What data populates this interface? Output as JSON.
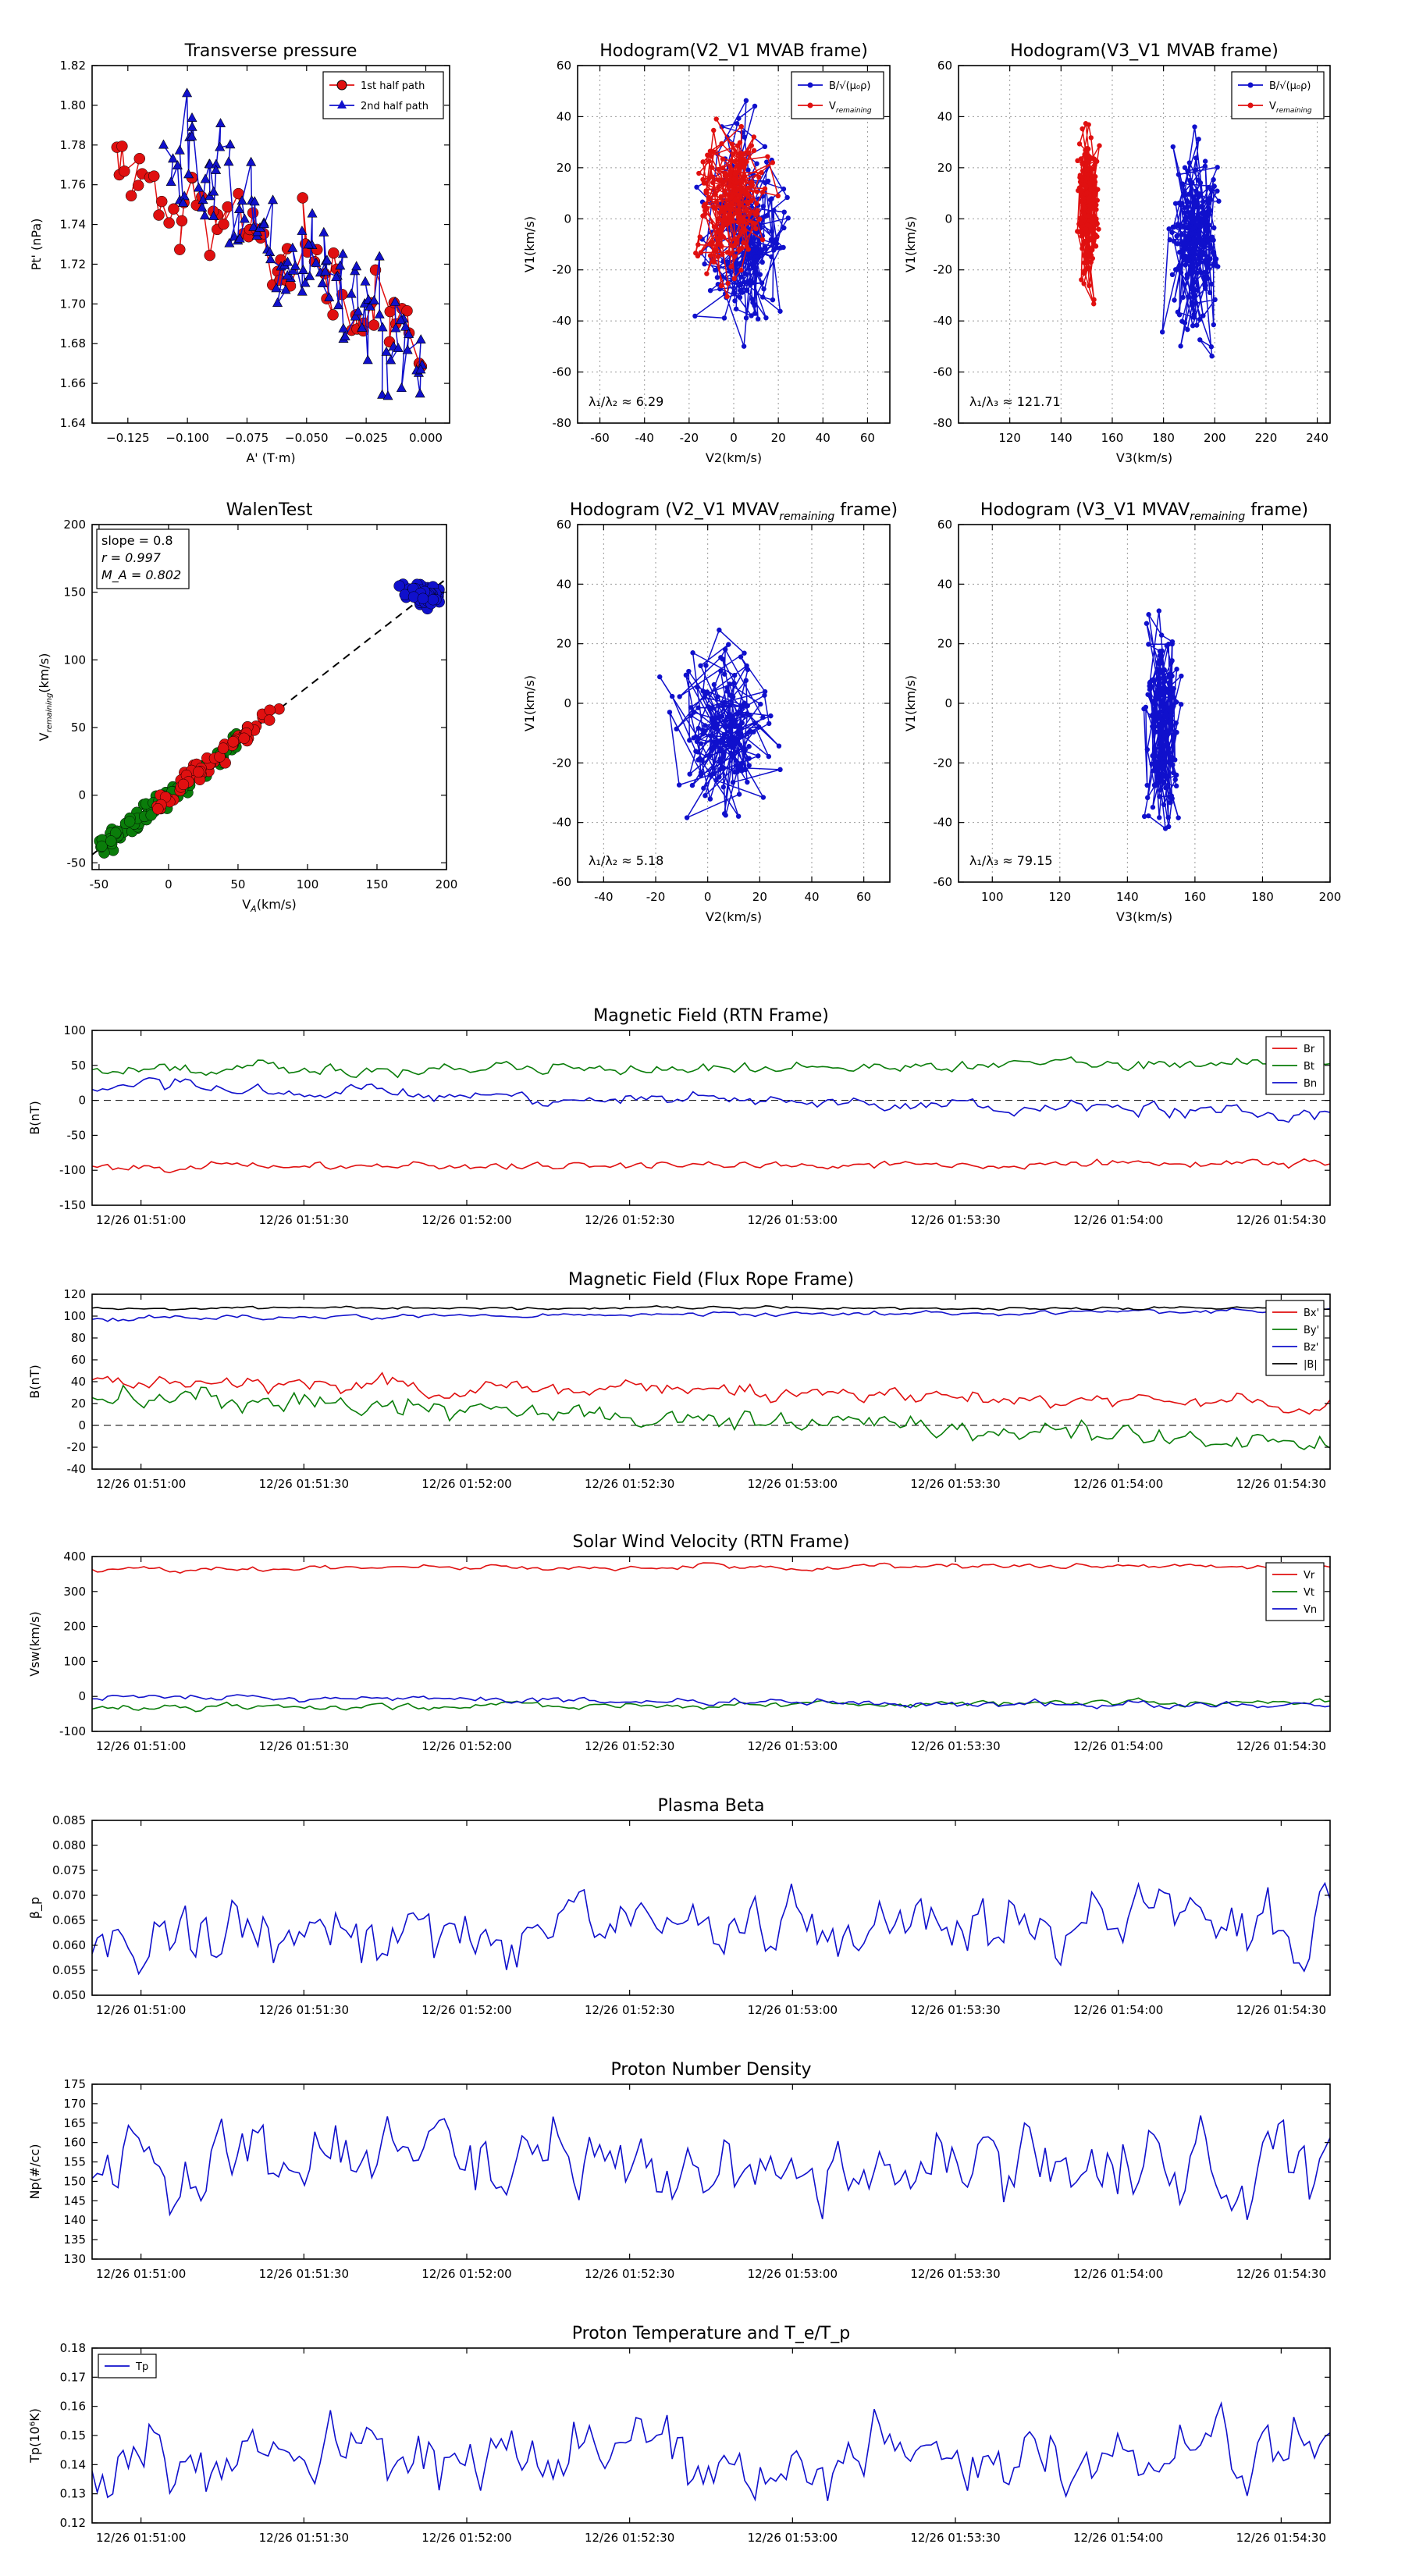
{
  "colors": {
    "red": "#e01010",
    "green": "#0a7d0a",
    "blue": "#1010cc",
    "black": "#000000"
  },
  "chart_data": [
    {
      "id": "p1",
      "type": "line",
      "markers": true,
      "title": "Transverse pressure",
      "xlabel": "A' (T·m)",
      "ylabel": "Pt' (nPa)",
      "xlim": [
        -0.14,
        0.01
      ],
      "ylim": [
        1.64,
        1.82
      ],
      "xticks": [
        -0.125,
        -0.1,
        -0.075,
        -0.05,
        -0.025,
        0.0
      ],
      "xtick_labels": [
        "−0.125",
        "−0.100",
        "−0.075",
        "−0.050",
        "−0.025",
        "0.000"
      ],
      "yticks": [
        1.64,
        1.66,
        1.68,
        1.7,
        1.72,
        1.74,
        1.76,
        1.78,
        1.8,
        1.82
      ],
      "ytick_labels": [
        "1.64",
        "1.66",
        "1.68",
        "1.70",
        "1.72",
        "1.74",
        "1.76",
        "1.78",
        "1.80",
        "1.82"
      ],
      "grid": false,
      "legend": "top-right",
      "series": [
        {
          "name": "1st half path",
          "color": "red",
          "marker": "circle",
          "gen": {
            "kind": "ramp",
            "n": 70,
            "x0": -0.131,
            "x1": -0.002,
            "y0": 1.775,
            "y1": 1.68,
            "amp": 0.03,
            "seed": 3
          }
        },
        {
          "name": "2nd half path",
          "color": "blue",
          "marker": "triangle",
          "gen": {
            "kind": "ramp",
            "n": 120,
            "x0": -0.108,
            "x1": -0.001,
            "y0": 1.785,
            "y1": 1.665,
            "amp": 0.035,
            "seed": 9
          }
        }
      ]
    },
    {
      "id": "p2",
      "type": "scatter-line",
      "markers": true,
      "title": "Hodogram(V2_V1 MVAB frame)",
      "xlabel": "V2(km/s)",
      "ylabel": "V1(km/s)",
      "xlim": [
        -70,
        70
      ],
      "ylim": [
        -80,
        60
      ],
      "xticks": [
        -60,
        -40,
        -20,
        0,
        20,
        40,
        60
      ],
      "yticks": [
        -80,
        -60,
        -40,
        -20,
        0,
        20,
        40,
        60
      ],
      "grid": true,
      "legend": "top-right",
      "annotation": "λ₁/λ₂ ≈ 6.29",
      "series": [
        {
          "name": "B/√(μ₀ρ)",
          "color": "blue",
          "marker": "circle",
          "gen": {
            "kind": "walk",
            "n": 200,
            "cx": 5,
            "cy": -5,
            "sx": 16,
            "sy": 30,
            "seed": 21
          }
        },
        {
          "name": "V_remaining",
          "color": "red",
          "marker": "circle",
          "gen": {
            "kind": "walk",
            "n": 200,
            "cx": 0,
            "cy": 5,
            "sx": 13,
            "sy": 24,
            "seed": 33
          }
        }
      ]
    },
    {
      "id": "p3",
      "type": "scatter-line",
      "markers": true,
      "title": "Hodogram(V3_V1 MVAB frame)",
      "xlabel": "V3(km/s)",
      "ylabel": "V1(km/s)",
      "xlim": [
        100,
        245
      ],
      "ylim": [
        -80,
        60
      ],
      "xticks": [
        120,
        140,
        160,
        180,
        200,
        220,
        240
      ],
      "yticks": [
        -80,
        -60,
        -40,
        -20,
        0,
        20,
        40,
        60
      ],
      "grid": true,
      "legend": "top-right",
      "annotation": "λ₁/λ₃ ≈ 121.71",
      "series": [
        {
          "name": "B/√(μ₀ρ)",
          "color": "blue",
          "marker": "circle",
          "gen": {
            "kind": "walk",
            "n": 200,
            "cx": 192,
            "cy": -8,
            "sx": 8,
            "sy": 30,
            "seed": 41
          }
        },
        {
          "name": "V_remaining",
          "color": "red",
          "marker": "circle",
          "gen": {
            "kind": "walk",
            "n": 200,
            "cx": 151,
            "cy": 5,
            "sx": 3.5,
            "sy": 24,
            "seed": 57
          }
        }
      ]
    },
    {
      "id": "p4",
      "type": "scatter",
      "title": "WalenTest",
      "xlabel": "V_A(km/s)",
      "ylabel": "V_remaining(km/s)",
      "xlim": [
        -55,
        200
      ],
      "ylim": [
        -55,
        200
      ],
      "xticks": [
        -50,
        0,
        50,
        100,
        150,
        200
      ],
      "yticks": [
        -50,
        0,
        50,
        100,
        150,
        200
      ],
      "grid": false,
      "stats": [
        "slope = 0.8",
        "r = 0.997",
        "M_A = 0.802"
      ],
      "fit": {
        "slope": 0.8,
        "intercept": 0
      },
      "series": [
        {
          "name": "green",
          "color": "green",
          "gen": {
            "kind": "cloud",
            "n": 110,
            "x0": -50,
            "x1": 50,
            "slope": 0.8,
            "amp": 6,
            "seed": 5
          }
        },
        {
          "name": "red",
          "color": "red",
          "gen": {
            "kind": "cloud",
            "n": 60,
            "x0": -10,
            "x1": 80,
            "slope": 0.8,
            "amp": 5,
            "seed": 6
          }
        },
        {
          "name": "blue",
          "color": "blue",
          "gen": {
            "kind": "blob",
            "n": 70,
            "cx": 185,
            "cy": 148,
            "sx": 12,
            "sy": 6,
            "seed": 7
          }
        }
      ]
    },
    {
      "id": "p5",
      "type": "scatter-line",
      "markers": true,
      "title": "Hodogram (V2_V1 MVAV_remaining frame)",
      "xlabel": "V2(km/s)",
      "ylabel": "V1(km/s)",
      "xlim": [
        -50,
        70
      ],
      "ylim": [
        -60,
        60
      ],
      "xticks": [
        -40,
        -20,
        0,
        20,
        40,
        60
      ],
      "yticks": [
        -60,
        -40,
        -20,
        0,
        20,
        40,
        60
      ],
      "grid": true,
      "annotation": "λ₁/λ₂ ≈ 5.18",
      "series": [
        {
          "name": "V_remaining",
          "color": "blue",
          "marker": "circle",
          "gen": {
            "kind": "walk",
            "n": 180,
            "cx": 5,
            "cy": -10,
            "sx": 14,
            "sy": 24,
            "seed": 71
          }
        }
      ]
    },
    {
      "id": "p6",
      "type": "scatter-line",
      "markers": true,
      "title": "Hodogram (V3_V1 MVAV_remaining frame)",
      "xlabel": "V3(km/s)",
      "ylabel": "V1(km/s)",
      "xlim": [
        90,
        200
      ],
      "ylim": [
        -60,
        60
      ],
      "xticks": [
        100,
        120,
        140,
        160,
        180,
        200
      ],
      "yticks": [
        -60,
        -40,
        -20,
        0,
        20,
        40,
        60
      ],
      "grid": true,
      "annotation": "λ₁/λ₃ ≈ 79.15",
      "series": [
        {
          "name": "V_remaining",
          "color": "blue",
          "marker": "circle",
          "gen": {
            "kind": "walk",
            "n": 180,
            "cx": 150,
            "cy": -5,
            "sx": 4,
            "sy": 26,
            "seed": 83
          }
        }
      ]
    },
    {
      "id": "t1",
      "type": "line",
      "timeseries": true,
      "title": "Magnetic Field (RTN Frame)",
      "ylabel": "B(nT)",
      "ylim": [
        -150,
        100
      ],
      "yticks": [
        -150,
        -100,
        -50,
        0,
        50,
        100
      ],
      "zero_line": true,
      "grid": false,
      "legend": "top-right",
      "xtick_labels": [
        "12/26 01:51:00",
        "12/26 01:51:30",
        "12/26 01:52:00",
        "12/26 01:52:30",
        "12/26 01:53:00",
        "12/26 01:53:30",
        "12/26 01:54:00",
        "12/26 01:54:30"
      ],
      "series": [
        {
          "name": "Br",
          "color": "red",
          "gen": {
            "kind": "ts",
            "n": 240,
            "base": -95,
            "trend": [
              0,
              5
            ],
            "amp": 4,
            "seed": 101
          }
        },
        {
          "name": "Bt",
          "color": "green",
          "gen": {
            "kind": "ts",
            "n": 240,
            "base": 52,
            "trend": [
              -8,
              0
            ],
            "amp": 6,
            "seed": 102
          }
        },
        {
          "name": "Bn",
          "color": "blue",
          "gen": {
            "kind": "ts",
            "n": 240,
            "base": 0,
            "trend": [
              18,
              -20
            ],
            "amp": 7,
            "seed": 103
          }
        }
      ]
    },
    {
      "id": "t2",
      "type": "line",
      "timeseries": true,
      "title": "Magnetic Field (Flux Rope Frame)",
      "ylabel": "B(nT)",
      "ylim": [
        -40,
        120
      ],
      "yticks": [
        -40,
        -20,
        0,
        20,
        40,
        60,
        80,
        100,
        120
      ],
      "zero_line": true,
      "grid": false,
      "legend": "top-right",
      "xtick_labels": [
        "12/26 01:51:00",
        "12/26 01:51:30",
        "12/26 01:52:00",
        "12/26 01:52:30",
        "12/26 01:53:00",
        "12/26 01:53:30",
        "12/26 01:54:00",
        "12/26 01:54:30"
      ],
      "series": [
        {
          "name": "Bx'",
          "color": "red",
          "gen": {
            "kind": "ts",
            "n": 240,
            "base": 20,
            "trend": [
              22,
              0
            ],
            "amp": 5,
            "seed": 111
          }
        },
        {
          "name": "By'",
          "color": "green",
          "gen": {
            "kind": "ts",
            "n": 240,
            "base": 0,
            "trend": [
              28,
              -18
            ],
            "amp": 7,
            "seed": 112
          }
        },
        {
          "name": "Bz'",
          "color": "blue",
          "gen": {
            "kind": "ts",
            "n": 240,
            "base": 105,
            "trend": [
              -7,
              0
            ],
            "amp": 1.5,
            "seed": 113
          }
        },
        {
          "name": "|B|",
          "color": "black",
          "gen": {
            "kind": "ts",
            "n": 240,
            "base": 107,
            "trend": [
              0,
              0
            ],
            "amp": 1,
            "seed": 114
          }
        }
      ]
    },
    {
      "id": "t3",
      "type": "line",
      "timeseries": true,
      "title": "Solar Wind Velocity (RTN Frame)",
      "ylabel": "Vsw(km/s)",
      "ylim": [
        -100,
        400
      ],
      "yticks": [
        -100,
        0,
        100,
        200,
        300,
        400
      ],
      "grid": false,
      "legend": "top-right",
      "xtick_labels": [
        "12/26 01:51:00",
        "12/26 01:51:30",
        "12/26 01:52:00",
        "12/26 01:52:30",
        "12/26 01:53:00",
        "12/26 01:53:30",
        "12/26 01:54:00",
        "12/26 01:54:30"
      ],
      "series": [
        {
          "name": "Vr",
          "color": "red",
          "gen": {
            "kind": "ts",
            "n": 240,
            "base": 370,
            "trend": [
              -5,
              5
            ],
            "amp": 5,
            "seed": 121
          }
        },
        {
          "name": "Vt",
          "color": "green",
          "gen": {
            "kind": "ts",
            "n": 240,
            "base": -20,
            "trend": [
              -12,
              5
            ],
            "amp": 6,
            "seed": 122
          }
        },
        {
          "name": "Vn",
          "color": "blue",
          "gen": {
            "kind": "ts",
            "n": 240,
            "base": -20,
            "trend": [
              20,
              -10
            ],
            "amp": 7,
            "seed": 123
          }
        }
      ]
    },
    {
      "id": "t4",
      "type": "line",
      "timeseries": true,
      "title": "Plasma Beta",
      "ylabel": "β_p",
      "ylim": [
        0.05,
        0.085
      ],
      "yticks": [
        0.05,
        0.055,
        0.06,
        0.065,
        0.07,
        0.075,
        0.08,
        0.085
      ],
      "ytick_labels": [
        "0.050",
        "0.055",
        "0.060",
        "0.065",
        "0.070",
        "0.075",
        "0.080",
        "0.085"
      ],
      "grid": false,
      "xtick_labels": [
        "12/26 01:51:00",
        "12/26 01:51:30",
        "12/26 01:52:00",
        "12/26 01:52:30",
        "12/26 01:53:00",
        "12/26 01:53:30",
        "12/26 01:54:00",
        "12/26 01:54:30"
      ],
      "series": [
        {
          "name": "beta",
          "color": "blue",
          "gen": {
            "kind": "ts",
            "n": 240,
            "base": 0.0625,
            "trend": [
              -0.001,
              0.003
            ],
            "amp": 0.0045,
            "seed": 131
          }
        }
      ]
    },
    {
      "id": "t5",
      "type": "line",
      "timeseries": true,
      "title": "Proton Number Density",
      "ylabel": "Np(#/cc)",
      "ylim": [
        130,
        175
      ],
      "yticks": [
        130,
        135,
        140,
        145,
        150,
        155,
        160,
        165,
        170,
        175
      ],
      "grid": false,
      "xtick_labels": [
        "12/26 01:51:00",
        "12/26 01:51:30",
        "12/26 01:52:00",
        "12/26 01:52:30",
        "12/26 01:53:00",
        "12/26 01:53:30",
        "12/26 01:54:00",
        "12/26 01:54:30"
      ],
      "series": [
        {
          "name": "Np",
          "color": "blue",
          "gen": {
            "kind": "ts",
            "n": 240,
            "base": 152,
            "trend": [
              6,
              0
            ],
            "amp": 7,
            "seed": 141
          }
        }
      ]
    },
    {
      "id": "t6",
      "type": "line",
      "timeseries": true,
      "title": "Proton Temperature and T_e/T_p",
      "ylabel": "Tp(10⁶K)",
      "ylim": [
        0.12,
        0.18
      ],
      "yticks": [
        0.12,
        0.13,
        0.14,
        0.15,
        0.16,
        0.17,
        0.18
      ],
      "ytick_labels": [
        "0.12",
        "0.13",
        "0.14",
        "0.15",
        "0.16",
        "0.17",
        "0.18"
      ],
      "grid": false,
      "legend": "top-left",
      "xtick_labels": [
        "12/26 01:51:00",
        "12/26 01:51:30",
        "12/26 01:52:00",
        "12/26 01:52:30",
        "12/26 01:53:00",
        "12/26 01:53:30",
        "12/26 01:54:00",
        "12/26 01:54:30"
      ],
      "series": [
        {
          "name": "Tp",
          "color": "blue",
          "gen": {
            "kind": "ts",
            "n": 240,
            "base": 0.141,
            "trend": [
              -0.003,
              0.006
            ],
            "amp": 0.008,
            "seed": 151
          }
        }
      ]
    }
  ]
}
